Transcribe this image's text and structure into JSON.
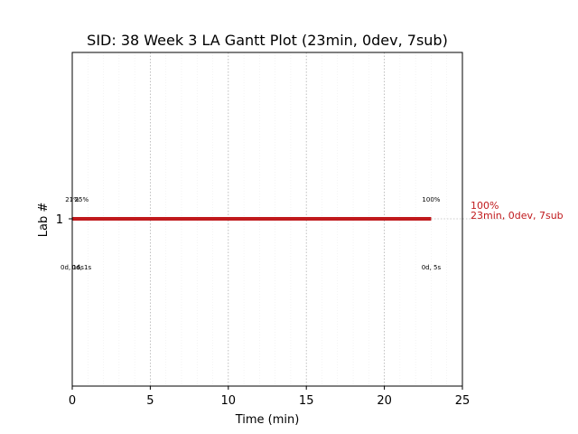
{
  "chart_data": {
    "type": "gantt",
    "title": "SID: 38 Week 3 LA Gantt Plot (23min, 0dev, 7sub)",
    "xlabel": "Time (min)",
    "ylabel": "Lab #",
    "xlim": [
      0,
      25
    ],
    "xticks": [
      0,
      5,
      10,
      15,
      20,
      25
    ],
    "xticks_labels": [
      "0",
      "5",
      "10",
      "15",
      "20",
      "25"
    ],
    "yticks": [
      1
    ],
    "yticks_labels": [
      "1"
    ],
    "grid": true,
    "bar_color": "#c0191c",
    "bars": [
      {
        "lab": 1,
        "start": 0,
        "end": 23
      }
    ],
    "annotations_above": [
      {
        "x": 0.0,
        "text": "21%"
      },
      {
        "x": 0.6,
        "text": "25%"
      },
      {
        "x": 23.0,
        "text": "100%"
      }
    ],
    "annotations_below": [
      {
        "x": 0.0,
        "text": "0d, 16s"
      },
      {
        "x": 0.6,
        "text": "0d, 1s"
      },
      {
        "x": 23.0,
        "text": "0d, 5s"
      }
    ],
    "summary": {
      "line1": "100%",
      "line2": "23min, 0dev, 7sub",
      "color": "#c0191c"
    }
  }
}
